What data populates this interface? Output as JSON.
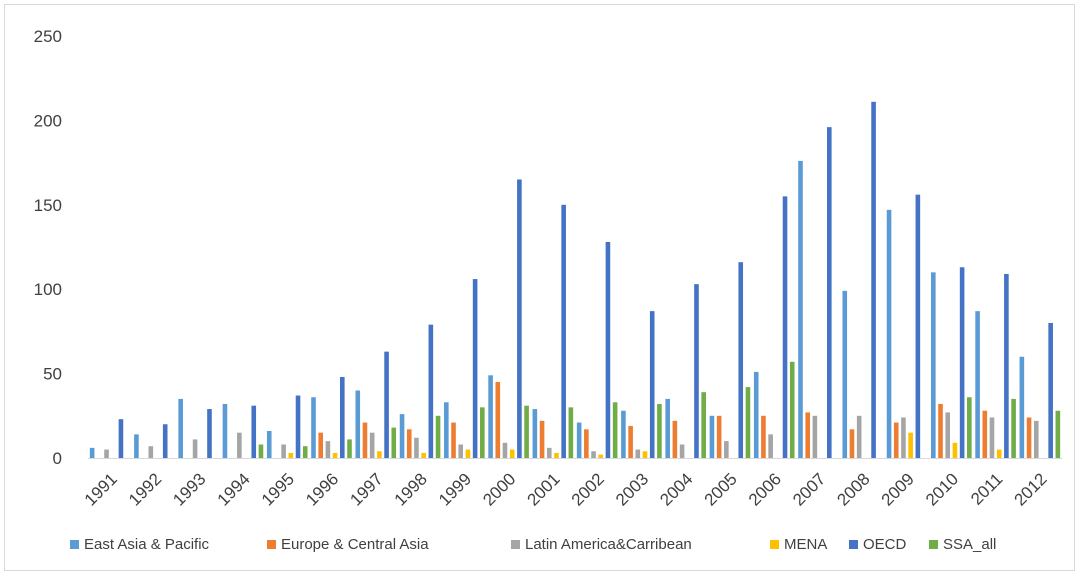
{
  "chart_data": {
    "type": "bar",
    "title": "",
    "xlabel": "",
    "ylabel": "",
    "ylim": [
      0,
      250
    ],
    "yticks": [
      0,
      50,
      100,
      150,
      200,
      250
    ],
    "grid": false,
    "legend_position": "bottom",
    "categories": [
      "1991",
      "1992",
      "1993",
      "1994",
      "1995",
      "1996",
      "1997",
      "1998",
      "1999",
      "2000",
      "2001",
      "2002",
      "2003",
      "2004",
      "2005",
      "2006",
      "2007",
      "2008",
      "2009",
      "2010",
      "2011",
      "2012"
    ],
    "series": [
      {
        "name": "East Asia & Pacific",
        "color": "#5B9BD5",
        "values": [
          6,
          14,
          35,
          32,
          16,
          36,
          40,
          26,
          33,
          49,
          29,
          21,
          28,
          35,
          25,
          51,
          176,
          99,
          147,
          110,
          87,
          60
        ]
      },
      {
        "name": "Europe & Central Asia",
        "color": "#ED7D31",
        "values": [
          0,
          0,
          0,
          0,
          0,
          15,
          21,
          17,
          21,
          45,
          22,
          17,
          19,
          22,
          25,
          25,
          27,
          17,
          21,
          32,
          28,
          24
        ]
      },
      {
        "name": "Latin America&Carribean",
        "color": "#A5A5A5",
        "values": [
          5,
          7,
          11,
          15,
          8,
          10,
          15,
          12,
          8,
          9,
          6,
          4,
          5,
          8,
          10,
          14,
          25,
          25,
          24,
          27,
          24,
          22
        ]
      },
      {
        "name": "MENA",
        "color": "#FFC000",
        "values": [
          0,
          0,
          0,
          0,
          3,
          3,
          4,
          3,
          5,
          5,
          3,
          2,
          4,
          0,
          0,
          0,
          0,
          0,
          15,
          9,
          5,
          0
        ]
      },
      {
        "name": "OECD",
        "color": "#4472C4",
        "values": [
          23,
          20,
          29,
          31,
          37,
          48,
          63,
          79,
          106,
          165,
          150,
          128,
          87,
          103,
          116,
          155,
          196,
          211,
          156,
          113,
          109,
          80
        ]
      },
      {
        "name": "SSA_all",
        "color": "#70AD47",
        "values": [
          0,
          0,
          0,
          8,
          7,
          11,
          18,
          25,
          30,
          31,
          30,
          33,
          32,
          39,
          42,
          57,
          0,
          0,
          0,
          36,
          35,
          28
        ]
      }
    ]
  }
}
